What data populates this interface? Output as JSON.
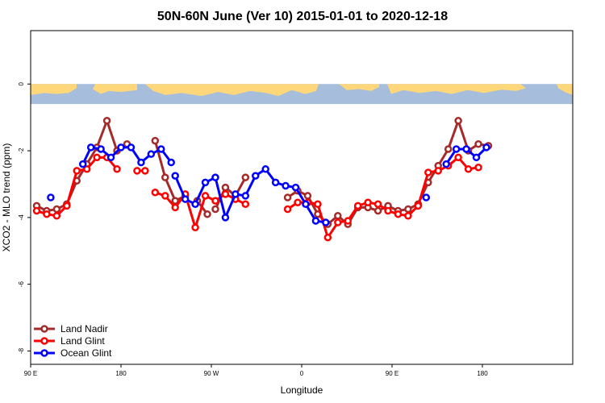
{
  "chart_data": {
    "type": "line",
    "title": "50N-60N June (Ver 10)   2015-01-01 to 2020-12-18",
    "xlabel": "Longitude",
    "ylabel": "XCO2 - MLO trend (ppm)",
    "xlim": [
      -90,
      180
    ],
    "ylim": [
      -8.4,
      1.6
    ],
    "x_ticks": [
      {
        "value": -90,
        "label": "90 E"
      },
      {
        "value": -45,
        "label": "180"
      },
      {
        "value": 0,
        "label": "90 W"
      },
      {
        "value": 45,
        "label": "0"
      },
      {
        "value": 90,
        "label": "90 E"
      },
      {
        "value": 135,
        "label": "180"
      }
    ],
    "y_ticks": [
      {
        "value": 0,
        "label": "0"
      },
      {
        "value": -2,
        "label": "-2"
      },
      {
        "value": -4,
        "label": "-4"
      },
      {
        "value": -6,
        "label": "-6"
      },
      {
        "value": -8,
        "label": "-8"
      }
    ],
    "map_band": {
      "y_top": 0,
      "y_bottom": -0.6,
      "ocean_color": "#a6bddb",
      "land_color": "#fdd77a"
    },
    "legend_position": "bottom-left",
    "series": [
      {
        "name": "Land Nadir",
        "color": "#a52a2a",
        "segments": [
          {
            "x": [
              -87,
              -82,
              -77,
              -72,
              -67,
              -62,
              -57,
              -52,
              -47,
              -42
            ],
            "y": [
              -3.65,
              -3.8,
              -3.75,
              -3.6,
              -2.9,
              -2.4,
              -1.9,
              -1.1,
              -2.0,
              -1.8
            ]
          },
          {
            "x": [
              -28,
              -23,
              -18,
              -13
            ],
            "y": [
              -1.7,
              -2.8,
              -3.5,
              -3.35
            ]
          },
          {
            "x": [
              -7,
              -2
            ],
            "y": [
              -3.5,
              -3.9
            ]
          },
          {
            "x": [
              2,
              7,
              12,
              17
            ],
            "y": [
              -3.75,
              -3.1,
              -3.35,
              -2.8
            ]
          },
          {
            "x": [
              38,
              43,
              48,
              53,
              58,
              63,
              68,
              73,
              78,
              83,
              88,
              93,
              98,
              103,
              108,
              113,
              118,
              123,
              128,
              133,
              138
            ],
            "y": [
              -3.4,
              -3.2,
              -3.35,
              -3.9,
              -4.2,
              -3.95,
              -4.2,
              -3.7,
              -3.7,
              -3.8,
              -3.65,
              -3.8,
              -3.75,
              -3.6,
              -2.95,
              -2.45,
              -1.95,
              -1.1,
              -2.0,
              -1.8,
              -1.85
            ]
          }
        ]
      },
      {
        "name": "Land Glint",
        "color": "#ff0000",
        "segments": [
          {
            "x": [
              -87,
              -82,
              -77,
              -72,
              -67,
              -62,
              -57,
              -52,
              -47
            ],
            "y": [
              -3.8,
              -3.9,
              -3.95,
              -3.65,
              -2.6,
              -2.55,
              -2.2,
              -2.2,
              -2.55
            ]
          },
          {
            "x": [
              -37,
              -33
            ],
            "y": [
              -2.6,
              -2.6
            ]
          },
          {
            "x": [
              -28,
              -23,
              -18,
              -13,
              -8,
              -3,
              2,
              7,
              12,
              17
            ],
            "y": [
              -3.25,
              -3.35,
              -3.7,
              -3.3,
              -4.3,
              -3.35,
              -3.5,
              -3.3,
              -3.45,
              -3.6
            ]
          },
          {
            "x": [
              38,
              43,
              48,
              53,
              58,
              63,
              68,
              73,
              78,
              83,
              88,
              93,
              98,
              103,
              108,
              113,
              118,
              123,
              128,
              133
            ],
            "y": [
              -3.75,
              -3.55,
              -3.55,
              -3.6,
              -4.6,
              -4.15,
              -4.1,
              -3.65,
              -3.55,
              -3.6,
              -3.8,
              -3.9,
              -3.95,
              -3.65,
              -2.65,
              -2.6,
              -2.45,
              -2.2,
              -2.55,
              -2.5
            ]
          }
        ]
      },
      {
        "name": "Ocean Glint",
        "color": "#0000ff",
        "segments": [
          {
            "x": [
              -80
            ],
            "y": [
              -3.4
            ]
          },
          {
            "x": [
              -64,
              -60,
              -55,
              -50,
              -45,
              -40,
              -35,
              -30,
              -25,
              -20
            ],
            "y": [
              -2.4,
              -1.9,
              -1.95,
              -2.2,
              -1.9,
              -1.9,
              -2.35,
              -2.1,
              -1.95,
              -2.35
            ]
          },
          {
            "x": [
              -18,
              -13,
              -8,
              -3,
              2,
              7,
              12,
              17,
              22,
              27,
              32,
              37,
              42,
              47,
              52,
              57
            ],
            "y": [
              -2.75,
              -3.45,
              -3.6,
              -2.95,
              -2.8,
              -4.0,
              -3.3,
              -3.35,
              -2.75,
              -2.55,
              -2.95,
              -3.05,
              -3.1,
              -3.6,
              -4.1,
              -4.15
            ]
          },
          {
            "x": [
              107
            ],
            "y": [
              -3.4
            ]
          },
          {
            "x": [
              117,
              122,
              127,
              132,
              137
            ],
            "y": [
              -2.4,
              -1.95,
              -1.95,
              -2.2,
              -1.9
            ]
          }
        ]
      }
    ]
  }
}
